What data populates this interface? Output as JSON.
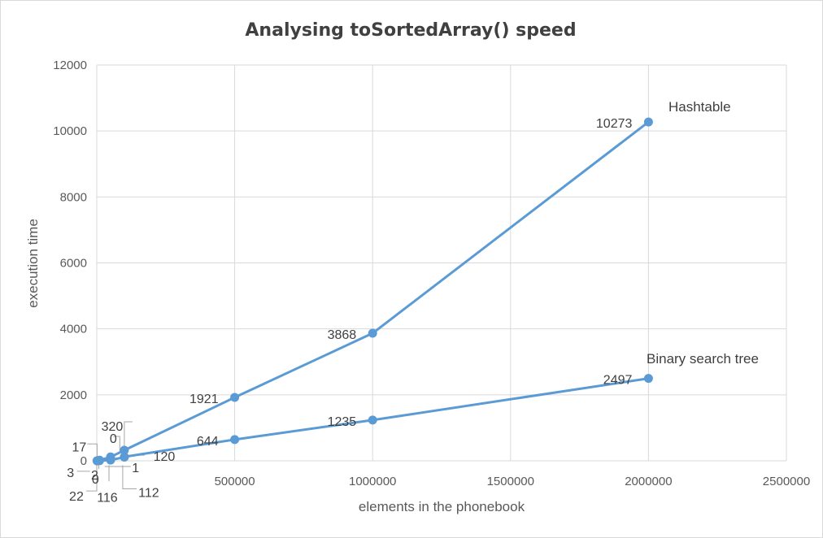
{
  "chart_data": {
    "type": "scatter",
    "title": "Analysing toSortedArray() speed",
    "xlabel": "elements in the phonebook",
    "ylabel": "execution time",
    "xlim": [
      0,
      2500000
    ],
    "ylim": [
      0,
      12000
    ],
    "x_ticks": [
      "0",
      "500000",
      "1000000",
      "1500000",
      "2000000",
      "2500000"
    ],
    "y_ticks": [
      "0",
      "2000",
      "4000",
      "6000",
      "8000",
      "10000",
      "12000"
    ],
    "grid": true,
    "legend": "none",
    "series": [
      {
        "name": "Hashtable",
        "color": "#5b9bd5",
        "points": [
          {
            "x": 1000,
            "y": 0,
            "label": "0"
          },
          {
            "x": 5000,
            "y": 3,
            "label": "3"
          },
          {
            "x": 10000,
            "y": 17,
            "label": "17"
          },
          {
            "x": 50000,
            "y": 116,
            "label": "116"
          },
          {
            "x": 100000,
            "y": 320,
            "label": "320"
          },
          {
            "x": 500000,
            "y": 1921,
            "label": "1921"
          },
          {
            "x": 1000000,
            "y": 3868,
            "label": "3868"
          },
          {
            "x": 2000000,
            "y": 10273,
            "label": "10273"
          }
        ]
      },
      {
        "name": "Binary search tree",
        "color": "#5b9bd5",
        "points": [
          {
            "x": 1000,
            "y": 0,
            "label": "0"
          },
          {
            "x": 5000,
            "y": 1,
            "label": "1"
          },
          {
            "x": 10000,
            "y": 2,
            "label": "2"
          },
          {
            "x": 50000,
            "y": 22,
            "label": "22"
          },
          {
            "x": 100000,
            "y": 112,
            "label": "112"
          },
          {
            "x": 100000,
            "y": 120,
            "label": "120"
          },
          {
            "x": 500000,
            "y": 644,
            "label": "644"
          },
          {
            "x": 1000000,
            "y": 1235,
            "label": "1235"
          },
          {
            "x": 2000000,
            "y": 2497,
            "label": "2497"
          }
        ]
      }
    ]
  }
}
